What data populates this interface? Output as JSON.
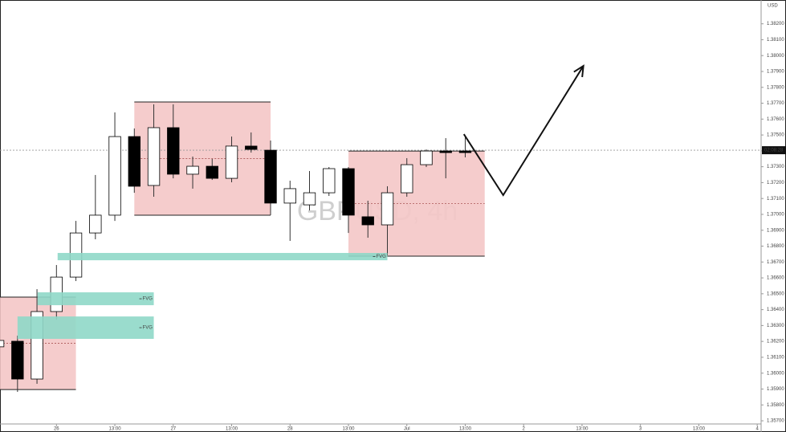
{
  "chart_data": {
    "type": "candlestick",
    "watermark": "GBPUSD, 4h",
    "currency": "USD",
    "x": [
      0,
      1,
      2,
      3,
      4,
      5,
      6,
      7,
      8,
      9,
      10,
      11,
      12,
      13,
      14,
      15,
      16,
      17,
      18,
      19,
      20,
      21,
      22,
      23,
      24
    ],
    "open": [
      1.36166,
      1.36201,
      1.35963,
      1.36388,
      1.36605,
      1.36883,
      1.36995,
      1.3749,
      1.37182,
      1.37546,
      1.37253,
      1.37303,
      1.37227,
      1.3743,
      1.37404,
      1.37071,
      1.3706,
      1.37136,
      1.37288,
      1.36985,
      1.36934,
      1.37136,
      1.37313,
      1.37399,
      1.37399
    ],
    "high": [
      1.36206,
      1.36236,
      1.36529,
      1.36681,
      1.36959,
      1.37248,
      1.37642,
      1.37541,
      1.37693,
      1.37693,
      1.37364,
      1.37349,
      1.3749,
      1.37516,
      1.37465,
      1.37212,
      1.37273,
      1.37298,
      1.37298,
      1.37086,
      1.37177,
      1.37354,
      1.37409,
      1.3748,
      1.3749
    ],
    "low": [
      1.36166,
      1.35882,
      1.35933,
      1.36337,
      1.3658,
      1.36843,
      1.36959,
      1.37136,
      1.37111,
      1.37227,
      1.37162,
      1.37217,
      1.37202,
      1.37389,
      1.36995,
      1.36833,
      1.37025,
      1.37116,
      1.36883,
      1.36853,
      1.36742,
      1.37111,
      1.37298,
      1.37227,
      1.37359
    ],
    "close": [
      1.36206,
      1.35963,
      1.36388,
      1.36605,
      1.36883,
      1.36995,
      1.3749,
      1.37177,
      1.37546,
      1.37253,
      1.37303,
      1.37227,
      1.3743,
      1.37409,
      1.37071,
      1.37162,
      1.37136,
      1.37288,
      1.36995,
      1.36934,
      1.37136,
      1.37313,
      1.37399,
      1.37389,
      1.37389
    ],
    "up_color": "#ffffff",
    "down_color": "#000000",
    "xlim": [
      0.1,
      39.2
    ],
    "ylim": [
      1.3568,
      1.3835
    ],
    "xticks": [
      {
        "value": 3,
        "label": "26"
      },
      {
        "value": 6,
        "label": "13:00"
      },
      {
        "value": 9,
        "label": "27"
      },
      {
        "value": 12,
        "label": "13:00"
      },
      {
        "value": 15,
        "label": "28"
      },
      {
        "value": 18,
        "label": "13:00"
      },
      {
        "value": 21,
        "label": "Jul"
      },
      {
        "value": 24,
        "label": "13:00"
      },
      {
        "value": 27,
        "label": "2"
      },
      {
        "value": 30,
        "label": "13:00"
      },
      {
        "value": 33,
        "label": "3"
      },
      {
        "value": 36,
        "label": "13:00"
      },
      {
        "value": 39,
        "label": "4"
      }
    ],
    "yticks": [
      {
        "value": 1.357,
        "label": "1.35700"
      },
      {
        "value": 1.358,
        "label": "1.35800"
      },
      {
        "value": 1.359,
        "label": "1.35900"
      },
      {
        "value": 1.36,
        "label": "1.36000"
      },
      {
        "value": 1.361,
        "label": "1.36100"
      },
      {
        "value": 1.362,
        "label": "1.36200"
      },
      {
        "value": 1.363,
        "label": "1.36300"
      },
      {
        "value": 1.364,
        "label": "1.36400"
      },
      {
        "value": 1.365,
        "label": "1.36500"
      },
      {
        "value": 1.366,
        "label": "1.36600"
      },
      {
        "value": 1.367,
        "label": "1.36700"
      },
      {
        "value": 1.368,
        "label": "1.36800"
      },
      {
        "value": 1.369,
        "label": "1.36900"
      },
      {
        "value": 1.37,
        "label": "1.37000"
      },
      {
        "value": 1.371,
        "label": "1.37100"
      },
      {
        "value": 1.372,
        "label": "1.37200"
      },
      {
        "value": 1.373,
        "label": "1.37300"
      },
      {
        "value": 1.374,
        "label": "1.37400"
      },
      {
        "value": 1.375,
        "label": "1.37500"
      },
      {
        "value": 1.376,
        "label": "1.37600"
      },
      {
        "value": 1.377,
        "label": "1.37700"
      },
      {
        "value": 1.378,
        "label": "1.37800"
      },
      {
        "value": 1.379,
        "label": "1.37900"
      },
      {
        "value": 1.38,
        "label": "1.38000"
      },
      {
        "value": 1.381,
        "label": "1.38100"
      },
      {
        "value": 1.382,
        "label": "1.38200"
      }
    ],
    "price_line": {
      "value": 1.37404,
      "label": "02:08:28"
    },
    "order_blocks": {
      "color": "#f4c7c7",
      "zones": [
        {
          "x": [
            0.1,
            4.0
          ],
          "y": [
            1.35897,
            1.36479
          ]
        },
        {
          "x": [
            7,
            14
          ],
          "y": [
            1.36995,
            1.37708
          ]
        },
        {
          "x": [
            18,
            25
          ],
          "y": [
            1.36737,
            1.37399
          ]
        }
      ]
    },
    "fvg": {
      "color": "#8fd8c8",
      "zones": [
        {
          "x": [
            3.06,
            20
          ],
          "y": [
            1.36711,
            1.36757
          ],
          "label": "FVG"
        },
        {
          "x": [
            2.03,
            8
          ],
          "y": [
            1.36428,
            1.36509
          ],
          "label": "FVG"
        },
        {
          "x": [
            1,
            8
          ],
          "y": [
            1.36216,
            1.36357
          ],
          "label": "FVG"
        }
      ]
    },
    "arrow": {
      "x": [
        23.93,
        25.95,
        30.07
      ],
      "y": [
        1.37505,
        1.37121,
        1.37935
      ]
    }
  }
}
